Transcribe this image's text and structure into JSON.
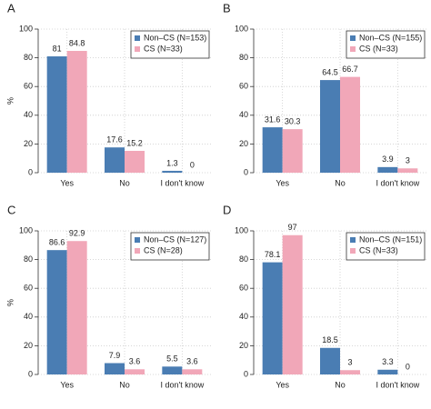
{
  "chart_data": [
    {
      "type": "bar",
      "title": "A",
      "ylabel": "%",
      "categories": [
        "Yes",
        "No",
        "I don't know"
      ],
      "series": [
        {
          "name": "Non–CS (N=153)",
          "color": "#4a7db3",
          "values": [
            81,
            17.6,
            1.3
          ]
        },
        {
          "name": "CS (N=33)",
          "color": "#f1a7b8",
          "values": [
            84.8,
            15.2,
            0
          ]
        }
      ],
      "ylim": [
        0,
        100
      ],
      "yticks": [
        0,
        20,
        40,
        60,
        80,
        100
      ],
      "grid": true
    },
    {
      "type": "bar",
      "title": "B",
      "categories": [
        "Yes",
        "No",
        "I don't know"
      ],
      "series": [
        {
          "name": "Non–CS (N=155)",
          "color": "#4a7db3",
          "values": [
            31.6,
            64.5,
            3.9
          ]
        },
        {
          "name": "CS (N=33)",
          "color": "#f1a7b8",
          "values": [
            30.3,
            66.7,
            3
          ]
        }
      ],
      "ylim": [
        0,
        100
      ],
      "yticks": [
        0,
        20,
        40,
        60,
        80,
        100
      ],
      "grid": true
    },
    {
      "type": "bar",
      "title": "C",
      "ylabel": "%",
      "categories": [
        "Yes",
        "No",
        "I don't know"
      ],
      "series": [
        {
          "name": "Non–CS (N=127)",
          "color": "#4a7db3",
          "values": [
            86.6,
            7.9,
            5.5
          ]
        },
        {
          "name": "CS (N=28)",
          "color": "#f1a7b8",
          "values": [
            92.9,
            3.6,
            3.6
          ]
        }
      ],
      "ylim": [
        0,
        100
      ],
      "yticks": [
        0,
        20,
        40,
        60,
        80,
        100
      ],
      "grid": true
    },
    {
      "type": "bar",
      "title": "D",
      "categories": [
        "Yes",
        "No",
        "I don't know"
      ],
      "series": [
        {
          "name": "Non–CS (N=151)",
          "color": "#4a7db3",
          "values": [
            78.1,
            18.5,
            3.3
          ]
        },
        {
          "name": "CS (N=33)",
          "color": "#f1a7b8",
          "values": [
            97,
            3,
            0
          ]
        }
      ],
      "ylim": [
        0,
        100
      ],
      "yticks": [
        0,
        20,
        40,
        60,
        80,
        100
      ],
      "grid": true
    }
  ]
}
